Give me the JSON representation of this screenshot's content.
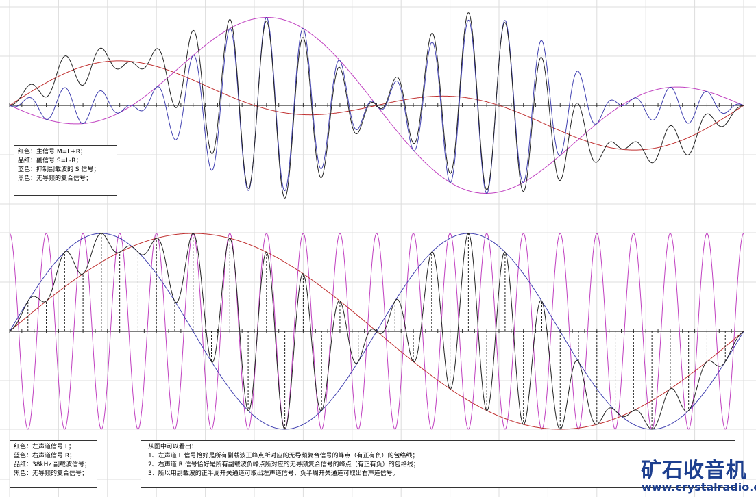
{
  "top_legend": [
    "红色：主信号 M=L+R；",
    "品红：副信号 S=L-R；",
    "蓝色：抑制副载波的 S 信号；",
    "黑色：无导频的复合信号；"
  ],
  "bottom_legend": [
    "红色：左声道信号 L；",
    "蓝色：右声道信号 R；",
    "品红：38kHz 副载波信号；",
    "黑色：无导频的复合信号；"
  ],
  "notes": {
    "heading": "从图中可以看出：",
    "items": [
      "1、左声道 L 信号恰好是所有副载波正峰点所对应的无导频复合信号的峰点（有正有负）的包络线；",
      "2、右声道 R 信号恰好是所有副载波负峰点所对应的无导频复合信号的峰点（有正有负）的包络线；",
      "3、所以用副载波的正半周开关通道可取出左声道信号，负半周开关通道可取出右声道信号。"
    ]
  },
  "logo": {
    "title": "矿石收音机",
    "url": "www.crystalradio.cn"
  }
}
